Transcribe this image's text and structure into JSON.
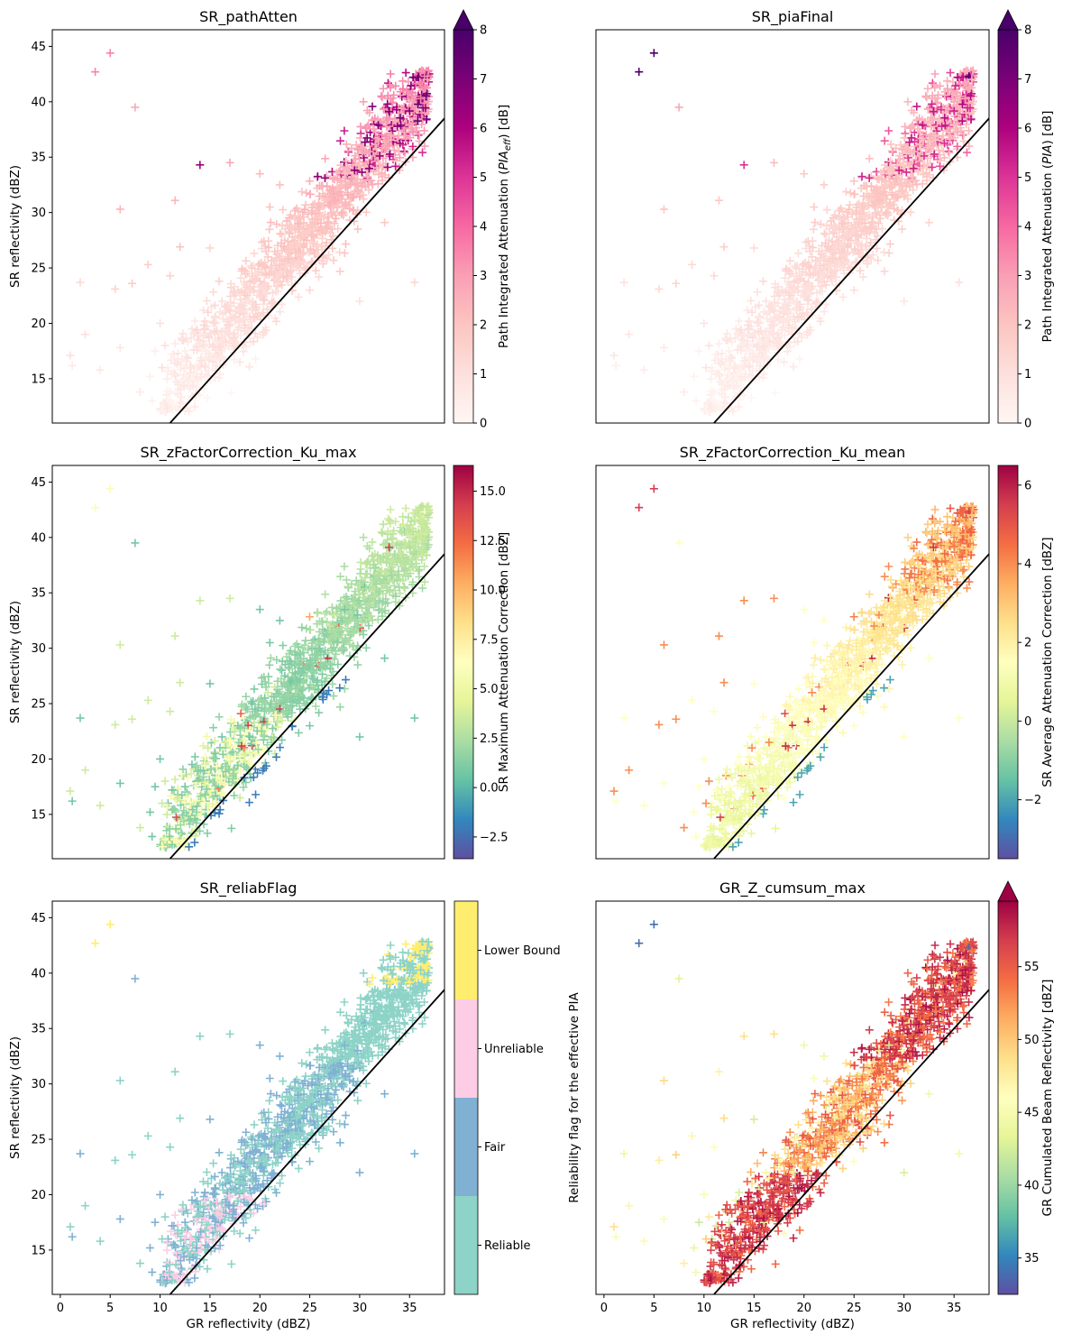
{
  "chart_data": [
    {
      "type": "scatter",
      "title": "SR_pathAtten",
      "xlabel": "",
      "ylabel": "SR reflectivity (dBZ)",
      "xlim": [
        -0.8,
        38.5
      ],
      "ylim": [
        11,
        46.5
      ],
      "x_ticks": [],
      "y_ticks": [
        15,
        20,
        25,
        30,
        35,
        40,
        45
      ],
      "marker": "+",
      "reference_line": {
        "slope": 1,
        "intercept": 0,
        "color": "#000000"
      },
      "colorbar": {
        "label_parts": [
          "Path Integrated Attenuation (",
          "PIA",
          "eff",
          ") [dB]"
        ],
        "cmap": "RdPu",
        "range": [
          0,
          8
        ],
        "ticks": [
          "0",
          "1",
          "2",
          "3",
          "4",
          "5",
          "6",
          "7",
          "8"
        ],
        "extend": "max"
      },
      "color_rule": "pia_eff"
    },
    {
      "type": "scatter",
      "title": "SR_piaFinal",
      "xlabel": "",
      "ylabel": "",
      "xlim": [
        -0.8,
        38.5
      ],
      "ylim": [
        11,
        46.5
      ],
      "x_ticks": [],
      "y_ticks": [],
      "marker": "+",
      "reference_line": {
        "slope": 1,
        "intercept": 0,
        "color": "#000000"
      },
      "colorbar": {
        "label_parts": [
          "Path Integrated Attenuation (",
          "PIA",
          "",
          ") [dB]"
        ],
        "cmap": "RdPu",
        "range": [
          0,
          8
        ],
        "ticks": [
          "0",
          "1",
          "2",
          "3",
          "4",
          "5",
          "6",
          "7",
          "8"
        ],
        "extend": "max"
      },
      "color_rule": "pia_final"
    },
    {
      "type": "scatter",
      "title": "SR_zFactorCorrection_Ku_max",
      "xlabel": "",
      "ylabel": "SR reflectivity (dBZ)",
      "xlim": [
        -0.8,
        38.5
      ],
      "ylim": [
        11,
        46.5
      ],
      "x_ticks": [],
      "y_ticks": [
        15,
        20,
        25,
        30,
        35,
        40,
        45
      ],
      "marker": "+",
      "reference_line": {
        "slope": 1,
        "intercept": 0,
        "color": "#000000"
      },
      "colorbar": {
        "label_parts": [
          "SR Maximum Attenuation Correction [dBZ]"
        ],
        "cmap": "Spectral_r",
        "range": [
          -3.6,
          16.3
        ],
        "ticks": [
          "−2.5",
          "0.0",
          "2.5",
          "5.0",
          "7.5",
          "10.0",
          "12.5",
          "15.0"
        ],
        "tick_values": [
          -2.5,
          0,
          2.5,
          5,
          7.5,
          10,
          12.5,
          15
        ],
        "extend": "neither"
      },
      "color_rule": "corr_max"
    },
    {
      "type": "scatter",
      "title": "SR_zFactorCorrection_Ku_mean",
      "xlabel": "",
      "ylabel": "",
      "xlim": [
        -0.8,
        38.5
      ],
      "ylim": [
        11,
        46.5
      ],
      "x_ticks": [],
      "y_ticks": [],
      "marker": "+",
      "reference_line": {
        "slope": 1,
        "intercept": 0,
        "color": "#000000"
      },
      "colorbar": {
        "label_parts": [
          "SR Average Attenuation Correction [dBZ]"
        ],
        "cmap": "Spectral_r",
        "range": [
          -3.5,
          6.5
        ],
        "ticks": [
          "−2",
          "0",
          "2",
          "4",
          "6"
        ],
        "tick_values": [
          -2,
          0,
          2,
          4,
          6
        ],
        "extend": "neither"
      },
      "color_rule": "corr_mean"
    },
    {
      "type": "scatter",
      "title": "SR_reliabFlag",
      "xlabel": "GR reflectivity (dBZ)",
      "ylabel": "SR reflectivity (dBZ)",
      "xlim": [
        -0.8,
        38.5
      ],
      "ylim": [
        11,
        46.5
      ],
      "x_ticks": [
        0,
        5,
        10,
        15,
        20,
        25,
        30,
        35
      ],
      "y_ticks": [
        15,
        20,
        25,
        30,
        35,
        40,
        45
      ],
      "marker": "+",
      "reference_line": {
        "slope": 1,
        "intercept": 0,
        "color": "#000000"
      },
      "colorbar": {
        "label_parts": [
          "Reliability flag for the effective PIA"
        ],
        "categorical": true,
        "categories": [
          "Reliable",
          "Fair",
          "Unreliable",
          "Lower Bound"
        ],
        "colors": [
          "#8dd3c7",
          "#80b1d3",
          "#fccde5",
          "#ffed6f"
        ]
      },
      "color_rule": "reliab"
    },
    {
      "type": "scatter",
      "title": "GR_Z_cumsum_max",
      "xlabel": "GR reflectivity (dBZ)",
      "ylabel": "",
      "xlim": [
        -0.8,
        38.5
      ],
      "ylim": [
        11,
        46.5
      ],
      "x_ticks": [
        0,
        5,
        10,
        15,
        20,
        25,
        30,
        35
      ],
      "y_ticks": [],
      "marker": "+",
      "reference_line": {
        "slope": 1,
        "intercept": 0,
        "color": "#000000"
      },
      "colorbar": {
        "label_parts": [
          "GR Cumulated Beam Reflectivity [dBZ]"
        ],
        "cmap": "Spectral_r",
        "range": [
          32.5,
          59.5
        ],
        "ticks": [
          "35",
          "40",
          "45",
          "50",
          "55"
        ],
        "tick_values": [
          35,
          40,
          45,
          50,
          55
        ],
        "extend": "max"
      },
      "color_rule": "gr_cumsum"
    }
  ],
  "scatter_points": {
    "description_of_shared_x_y": "same SR vs GR sample plotted in all six panels",
    "x": [
      3.5,
      5,
      7.5,
      1,
      1.2,
      2,
      5.5,
      6,
      7.2,
      8.8,
      9.2,
      10,
      11,
      11.5,
      12,
      13.5,
      14,
      15,
      17,
      20,
      21,
      22,
      24.5,
      25,
      30,
      32.5,
      35.5,
      2.5,
      4,
      6,
      8,
      9.5,
      10.5,
      13,
      16,
      18,
      19,
      23,
      26,
      28,
      31,
      34,
      36.5,
      36,
      35,
      33,
      32,
      31.5,
      30.5,
      29.5,
      28.5,
      27.5,
      27,
      26.5,
      25.5,
      24,
      23.5,
      22.5,
      21.5,
      20.5,
      19.5,
      18.5,
      17.5,
      16.5,
      15.5,
      14.5,
      13.8,
      12.5,
      11.8,
      10.8,
      9,
      33.5,
      34.5,
      35.2,
      36.2,
      32.8,
      31.2,
      29.8,
      28.2,
      26.8,
      25.2,
      23.8,
      22.2,
      20.8,
      19.2,
      17.8,
      16.2,
      14.8,
      13.2,
      12.2,
      11.2,
      10.2
    ],
    "y": [
      42.7,
      44.4,
      39.5,
      17.1,
      16.2,
      23.7,
      23.1,
      30.3,
      23.6,
      25.3,
      13,
      20,
      24.3,
      31.1,
      26.9,
      20.2,
      34.3,
      26.8,
      34.5,
      33.5,
      30.5,
      32.5,
      28.2,
      23,
      22,
      29.1,
      23.7,
      19,
      15.8,
      17.8,
      13.8,
      17.5,
      18,
      15.5,
      17.5,
      16.5,
      22,
      27,
      30,
      31.5,
      34.5,
      38,
      42.3,
      41.5,
      40,
      39,
      38,
      36.5,
      35.5,
      34.8,
      33.5,
      33,
      32,
      31.5,
      30.8,
      29.5,
      28.5,
      27.5,
      26.5,
      25.5,
      24.5,
      23.5,
      22.5,
      21.5,
      20.5,
      19.5,
      18.5,
      17.5,
      16.5,
      16,
      15.2,
      38.5,
      40.5,
      39.5,
      41,
      36,
      34,
      33,
      32.5,
      31,
      30,
      29,
      28,
      26,
      25,
      23,
      22,
      21,
      19.5,
      18.5,
      17.2,
      16
    ],
    "cloud": {
      "count": 1400
    }
  }
}
